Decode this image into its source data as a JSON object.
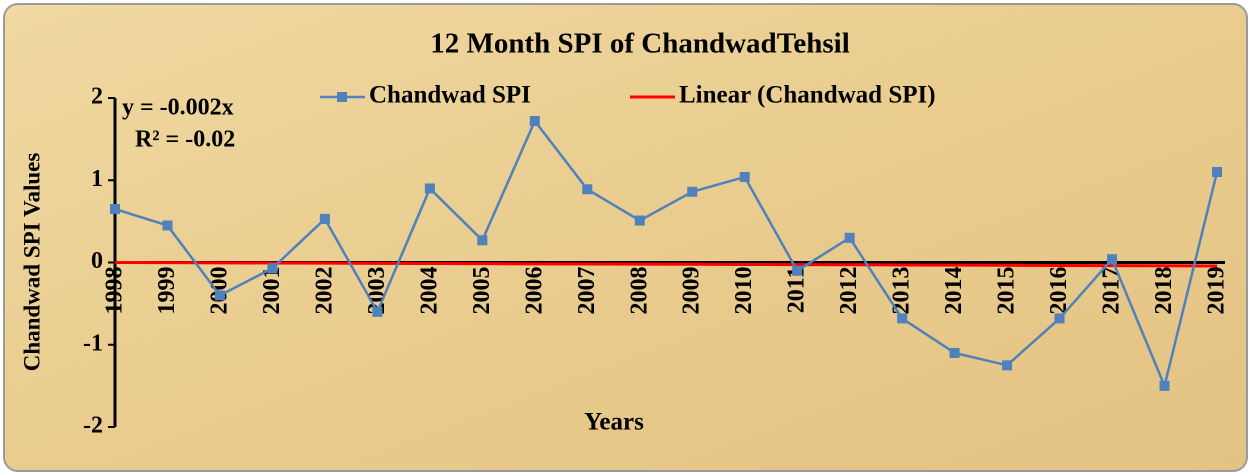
{
  "chart_data": {
    "type": "line",
    "title": "12 Month SPI of ChandwadTehsil",
    "x_label": "Years",
    "y_label": "Chandwad SPI Values",
    "annotations": [
      "y = -0.002x",
      "R² = -0.02"
    ],
    "categories": [
      "1998",
      "1999",
      "2000",
      "2001",
      "2002",
      "2003",
      "2004",
      "2005",
      "2006",
      "2007",
      "2008",
      "2009",
      "2010",
      "2011",
      "2012",
      "2013",
      "2014",
      "2015",
      "2016",
      "2017",
      "2018",
      "2019"
    ],
    "series": [
      {
        "name": "Chandwad SPI",
        "color": "#4f81bd",
        "marker": "square",
        "values": [
          0.65,
          0.45,
          -0.4,
          -0.07,
          0.53,
          -0.6,
          0.9,
          0.27,
          1.72,
          0.89,
          0.51,
          0.86,
          1.04,
          -0.1,
          0.3,
          -0.68,
          -1.1,
          -1.25,
          -0.68,
          0.04,
          -1.5,
          1.1
        ]
      },
      {
        "name": "Linear (Chandwad SPI)",
        "color": "#ff0000",
        "values": [
          0,
          -0.002,
          -0.004,
          -0.006,
          -0.008,
          -0.01,
          -0.012,
          -0.014,
          -0.016,
          -0.018,
          -0.02,
          -0.022,
          -0.024,
          -0.026,
          -0.028,
          -0.03,
          -0.032,
          -0.034,
          -0.036,
          -0.038,
          -0.04,
          -0.042
        ]
      }
    ],
    "ylim": [
      -2,
      2
    ],
    "yticks": [
      -2,
      -1,
      0,
      1,
      2
    ],
    "legend": "top"
  }
}
